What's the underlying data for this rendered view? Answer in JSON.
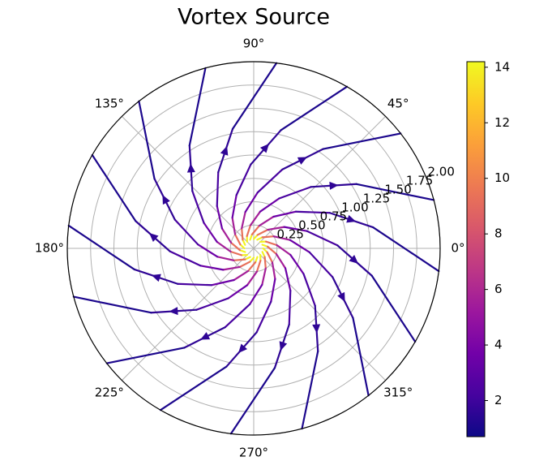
{
  "chart_data": {
    "type": "polar_streamplot",
    "title": "Vortex Source",
    "rlim": [
      0,
      2
    ],
    "rticks": [
      0.25,
      {
        "value": 0.5,
        "label": "0.50"
      },
      0.75,
      {
        "value": 1,
        "label": "1.00"
      },
      1.25,
      {
        "value": 1.5,
        "label": "1.50"
      },
      1.75,
      {
        "value": 2,
        "label": "2.00"
      }
    ],
    "thetaticks": [
      {
        "value": 0,
        "label": "0°"
      },
      {
        "value": 45,
        "label": "45°"
      },
      {
        "value": 90,
        "label": "90°"
      },
      {
        "value": 135,
        "label": "135°"
      },
      {
        "value": 180,
        "label": "180°"
      },
      {
        "value": 225,
        "label": "225°"
      },
      {
        "value": 270,
        "label": "270°"
      },
      {
        "value": 315,
        "label": "315°"
      }
    ],
    "grid": true,
    "colormap": "plasma",
    "clim": [
      0.7,
      14.2
    ],
    "cticks": [
      2,
      4,
      6,
      8,
      10,
      12,
      14
    ],
    "streamlines": [
      {
        "theta": [
          0,
          -16,
          -37,
          -55,
          -72,
          -88,
          -103,
          -120
        ],
        "r": [
          0.1,
          0.15,
          0.25,
          0.4,
          0.6,
          0.9,
          1.3,
          2.0
        ],
        "speed": [
          14,
          9.3,
          5.6,
          3.5,
          2.3,
          1.6,
          1.1,
          0.7
        ]
      },
      {
        "theta": [
          23,
          7,
          -14,
          -32,
          -49,
          -65,
          -80,
          -97
        ],
        "r": [
          0.1,
          0.15,
          0.25,
          0.4,
          0.6,
          0.9,
          1.3,
          2.0
        ],
        "speed": [
          14,
          9.3,
          5.6,
          3.5,
          2.3,
          1.6,
          1.1,
          0.7
        ]
      },
      {
        "theta": [
          45,
          29,
          8,
          -10,
          -27,
          -43,
          -58,
          -75
        ],
        "r": [
          0.1,
          0.15,
          0.25,
          0.4,
          0.6,
          0.9,
          1.3,
          2.0
        ],
        "speed": [
          14,
          9.3,
          5.6,
          3.5,
          2.3,
          1.6,
          1.1,
          0.7
        ]
      },
      {
        "theta": [
          68,
          52,
          31,
          13,
          -4,
          -20,
          -35,
          -52
        ],
        "r": [
          0.1,
          0.15,
          0.25,
          0.4,
          0.6,
          0.9,
          1.3,
          2.0
        ],
        "speed": [
          14,
          9.3,
          5.6,
          3.5,
          2.3,
          1.6,
          1.1,
          0.7
        ]
      },
      {
        "theta": [
          90,
          74,
          53,
          35,
          18,
          2,
          -13,
          -30
        ],
        "r": [
          0.1,
          0.15,
          0.25,
          0.4,
          0.6,
          0.9,
          1.3,
          2.0
        ],
        "speed": [
          14,
          9.3,
          5.6,
          3.5,
          2.3,
          1.6,
          1.1,
          0.7
        ]
      },
      {
        "theta": [
          113,
          97,
          76,
          58,
          41,
          25,
          10,
          -7
        ],
        "r": [
          0.1,
          0.15,
          0.25,
          0.4,
          0.6,
          0.9,
          1.3,
          2.0
        ],
        "speed": [
          14,
          9.3,
          5.6,
          3.5,
          2.3,
          1.6,
          1.1,
          0.7
        ]
      },
      {
        "theta": [
          135,
          119,
          98,
          80,
          63,
          47,
          32,
          15
        ],
        "r": [
          0.1,
          0.15,
          0.25,
          0.4,
          0.6,
          0.9,
          1.3,
          2.0
        ],
        "speed": [
          14,
          9.3,
          5.6,
          3.5,
          2.3,
          1.6,
          1.1,
          0.7
        ]
      },
      {
        "theta": [
          158,
          142,
          121,
          103,
          86,
          70,
          55,
          38
        ],
        "r": [
          0.1,
          0.15,
          0.25,
          0.4,
          0.6,
          0.9,
          1.3,
          2.0
        ],
        "speed": [
          14,
          9.3,
          5.6,
          3.5,
          2.3,
          1.6,
          1.1,
          0.7
        ]
      },
      {
        "theta": [
          180,
          164,
          143,
          125,
          108,
          92,
          77,
          60
        ],
        "r": [
          0.1,
          0.15,
          0.25,
          0.4,
          0.6,
          0.9,
          1.3,
          2.0
        ],
        "speed": [
          14,
          9.3,
          5.6,
          3.5,
          2.3,
          1.6,
          1.1,
          0.7
        ]
      },
      {
        "theta": [
          203,
          187,
          166,
          148,
          131,
          115,
          100,
          83
        ],
        "r": [
          0.1,
          0.15,
          0.25,
          0.4,
          0.6,
          0.9,
          1.3,
          2.0
        ],
        "speed": [
          14,
          9.3,
          5.6,
          3.5,
          2.3,
          1.6,
          1.1,
          0.7
        ]
      },
      {
        "theta": [
          225,
          209,
          188,
          170,
          153,
          137,
          122,
          105
        ],
        "r": [
          0.1,
          0.15,
          0.25,
          0.4,
          0.6,
          0.9,
          1.3,
          2.0
        ],
        "speed": [
          14,
          9.3,
          5.6,
          3.5,
          2.3,
          1.6,
          1.1,
          0.7
        ]
      },
      {
        "theta": [
          248,
          232,
          211,
          193,
          176,
          160,
          145,
          128
        ],
        "r": [
          0.1,
          0.15,
          0.25,
          0.4,
          0.6,
          0.9,
          1.3,
          2.0
        ],
        "speed": [
          14,
          9.3,
          5.6,
          3.5,
          2.3,
          1.6,
          1.1,
          0.7
        ]
      },
      {
        "theta": [
          270,
          254,
          233,
          215,
          198,
          182,
          167,
          150
        ],
        "r": [
          0.1,
          0.15,
          0.25,
          0.4,
          0.6,
          0.9,
          1.3,
          2.0
        ],
        "speed": [
          14,
          9.3,
          5.6,
          3.5,
          2.3,
          1.6,
          1.1,
          0.7
        ]
      },
      {
        "theta": [
          293,
          277,
          256,
          238,
          221,
          205,
          190,
          173
        ],
        "r": [
          0.1,
          0.15,
          0.25,
          0.4,
          0.6,
          0.9,
          1.3,
          2.0
        ],
        "speed": [
          14,
          9.3,
          5.6,
          3.5,
          2.3,
          1.6,
          1.1,
          0.7
        ]
      },
      {
        "theta": [
          315,
          299,
          278,
          260,
          243,
          227,
          212,
          195
        ],
        "r": [
          0.1,
          0.15,
          0.25,
          0.4,
          0.6,
          0.9,
          1.3,
          2.0
        ],
        "speed": [
          14,
          9.3,
          5.6,
          3.5,
          2.3,
          1.6,
          1.1,
          0.7
        ]
      },
      {
        "theta": [
          338,
          322,
          301,
          283,
          266,
          250,
          235,
          218
        ],
        "r": [
          0.1,
          0.15,
          0.25,
          0.4,
          0.6,
          0.9,
          1.3,
          2.0
        ],
        "speed": [
          14,
          9.3,
          5.6,
          3.5,
          2.3,
          1.6,
          1.1,
          0.7
        ]
      }
    ]
  }
}
